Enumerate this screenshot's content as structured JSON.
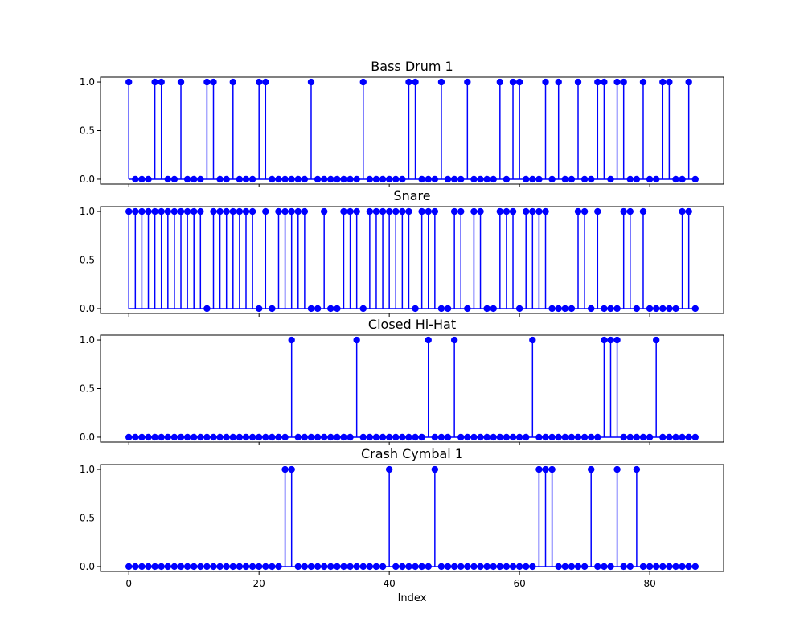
{
  "chart_data": {
    "type": "stem",
    "xlabel": "Index",
    "x_ticks": [
      0,
      20,
      40,
      60,
      80
    ],
    "y_ticks": [
      0.0,
      0.5,
      1.0
    ],
    "y_tick_labels": [
      "0.0",
      "0.5",
      "1.0"
    ],
    "xlim": [
      -4.35,
      91.35
    ],
    "ylim": [
      -0.05,
      1.05
    ],
    "colors": {
      "stem": "#0000ff",
      "axis": "#000000",
      "text": "#000000"
    },
    "panels": [
      {
        "title": "Bass Drum 1",
        "values": [
          1,
          0,
          0,
          0,
          1,
          1,
          0,
          0,
          1,
          0,
          0,
          0,
          1,
          1,
          0,
          0,
          1,
          0,
          0,
          0,
          1,
          1,
          0,
          0,
          0,
          0,
          0,
          0,
          1,
          0,
          0,
          0,
          0,
          0,
          0,
          0,
          1,
          0,
          0,
          0,
          0,
          0,
          0,
          1,
          1,
          0,
          0,
          0,
          1,
          0,
          0,
          0,
          1,
          0,
          0,
          0,
          0,
          1,
          0,
          1,
          1,
          0,
          0,
          0,
          1,
          0,
          1,
          0,
          0,
          1,
          0,
          0,
          1,
          1,
          0,
          1,
          1,
          0,
          0,
          1,
          0,
          0,
          1,
          1,
          0,
          0,
          1,
          0
        ]
      },
      {
        "title": "Snare",
        "values": [
          1,
          1,
          1,
          1,
          1,
          1,
          1,
          1,
          1,
          1,
          1,
          1,
          0,
          1,
          1,
          1,
          1,
          1,
          1,
          1,
          0,
          1,
          0,
          1,
          1,
          1,
          1,
          1,
          0,
          0,
          1,
          0,
          0,
          1,
          1,
          1,
          0,
          1,
          1,
          1,
          1,
          1,
          1,
          1,
          0,
          1,
          1,
          1,
          0,
          0,
          1,
          1,
          0,
          1,
          1,
          0,
          0,
          1,
          1,
          1,
          0,
          1,
          1,
          1,
          1,
          0,
          0,
          0,
          0,
          1,
          1,
          0,
          1,
          0,
          0,
          0,
          1,
          1,
          0,
          1,
          0,
          0,
          0,
          0,
          0,
          1,
          1,
          0
        ]
      },
      {
        "title": "Closed Hi-Hat",
        "values": [
          0,
          0,
          0,
          0,
          0,
          0,
          0,
          0,
          0,
          0,
          0,
          0,
          0,
          0,
          0,
          0,
          0,
          0,
          0,
          0,
          0,
          0,
          0,
          0,
          0,
          1,
          0,
          0,
          0,
          0,
          0,
          0,
          0,
          0,
          0,
          1,
          0,
          0,
          0,
          0,
          0,
          0,
          0,
          0,
          0,
          0,
          1,
          0,
          0,
          0,
          1,
          0,
          0,
          0,
          0,
          0,
          0,
          0,
          0,
          0,
          0,
          0,
          1,
          0,
          0,
          0,
          0,
          0,
          0,
          0,
          0,
          0,
          0,
          1,
          1,
          1,
          0,
          0,
          0,
          0,
          0,
          1,
          0,
          0,
          0,
          0,
          0,
          0
        ]
      },
      {
        "title": "Crash Cymbal 1",
        "values": [
          0,
          0,
          0,
          0,
          0,
          0,
          0,
          0,
          0,
          0,
          0,
          0,
          0,
          0,
          0,
          0,
          0,
          0,
          0,
          0,
          0,
          0,
          0,
          0,
          1,
          1,
          0,
          0,
          0,
          0,
          0,
          0,
          0,
          0,
          0,
          0,
          0,
          0,
          0,
          0,
          1,
          0,
          0,
          0,
          0,
          0,
          0,
          1,
          0,
          0,
          0,
          0,
          0,
          0,
          0,
          0,
          0,
          0,
          0,
          0,
          0,
          0,
          0,
          1,
          1,
          1,
          0,
          0,
          0,
          0,
          0,
          1,
          0,
          0,
          0,
          1,
          0,
          0,
          1,
          0,
          0,
          0,
          0,
          0,
          0,
          0,
          0,
          0
        ]
      }
    ]
  }
}
